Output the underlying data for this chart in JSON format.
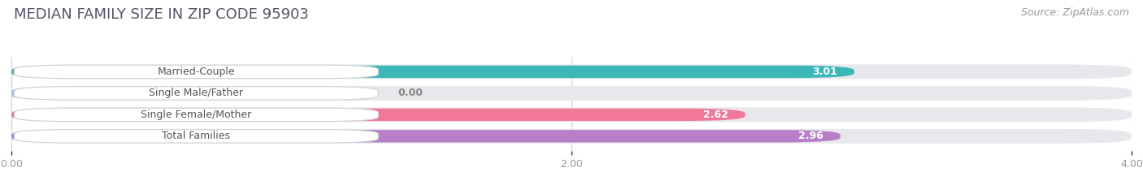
{
  "title": "MEDIAN FAMILY SIZE IN ZIP CODE 95903",
  "source": "Source: ZipAtlas.com",
  "categories": [
    "Married-Couple",
    "Single Male/Father",
    "Single Female/Mother",
    "Total Families"
  ],
  "values": [
    3.01,
    0.0,
    2.62,
    2.96
  ],
  "bar_colors": [
    "#3ab8b8",
    "#a8bce8",
    "#f07898",
    "#b87ec8"
  ],
  "bar_labels": [
    "3.01",
    "0.00",
    "2.62",
    "2.96"
  ],
  "xlim": [
    0,
    4.0
  ],
  "xticks": [
    0.0,
    2.0,
    4.0
  ],
  "xticklabels": [
    "0.00",
    "2.00",
    "4.00"
  ],
  "background_color": "#ffffff",
  "bar_background_color": "#e8e8ec",
  "title_fontsize": 13,
  "source_fontsize": 9,
  "label_fontsize": 9,
  "value_fontsize": 9
}
